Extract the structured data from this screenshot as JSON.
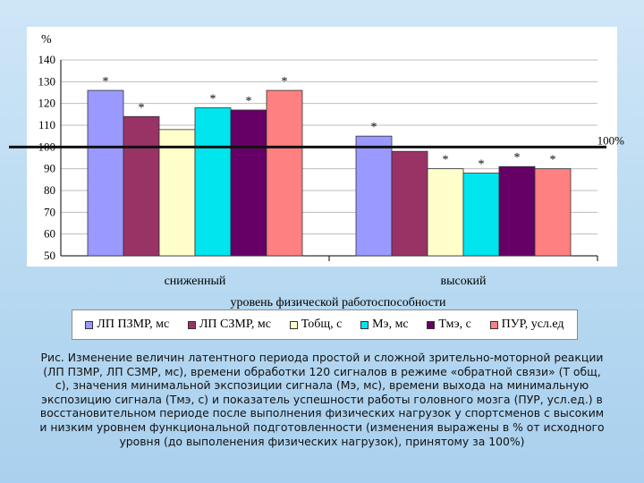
{
  "chart_data": {
    "type": "bar",
    "ylabel": "%",
    "xlabel": "уровень физической работоспособности",
    "ylim": [
      50,
      140
    ],
    "yticks": [
      50,
      60,
      70,
      80,
      90,
      100,
      110,
      120,
      130,
      140
    ],
    "reference_line": {
      "value": 100,
      "label": "100%"
    },
    "categories": [
      "сниженный",
      "высокий"
    ],
    "series": [
      {
        "name": "ЛП ПЗМР, мс",
        "color": "#9999ff",
        "values": [
          126,
          105
        ],
        "significant": [
          true,
          true
        ]
      },
      {
        "name": "ЛП СЗМР, мс",
        "color": "#993366",
        "values": [
          114,
          98
        ],
        "significant": [
          true,
          false
        ]
      },
      {
        "name": "Тобщ, с",
        "color": "#ffffcc",
        "values": [
          108,
          90
        ],
        "significant": [
          false,
          true
        ]
      },
      {
        "name": "Мэ, мс",
        "color": "#00e5ee",
        "values": [
          118,
          88
        ],
        "significant": [
          true,
          true
        ]
      },
      {
        "name": "Тмэ, с",
        "color": "#660066",
        "values": [
          117,
          91
        ],
        "significant": [
          true,
          true
        ]
      },
      {
        "name": "ПУР, усл.ед",
        "color": "#ff8080",
        "values": [
          126,
          90
        ],
        "significant": [
          true,
          true
        ]
      }
    ],
    "significance_marker": "*"
  },
  "caption": "Рис. Изменение величин латентного периода простой и сложной зрительно-моторной реакции (ЛП ПЗМР, ЛП СЗМР, мс), времени обработки 120 сигналов в режиме «обратной связи» (Т общ, с), значения минимальной экспозиции сигнала (Мэ, мс), времени выхода на минимальную экспозицию сигнала (Тмэ, с) и показатель успешности работы головного мозга (ПУР, усл.ед.) в восстановительном периоде после выполнения физических нагрузок у спортсменов с высоким и низким уровнем функциональной подготовленности (изменения выражены в % от исходного уровня (до выполенения физических нагрузок), принятому за 100%)"
}
